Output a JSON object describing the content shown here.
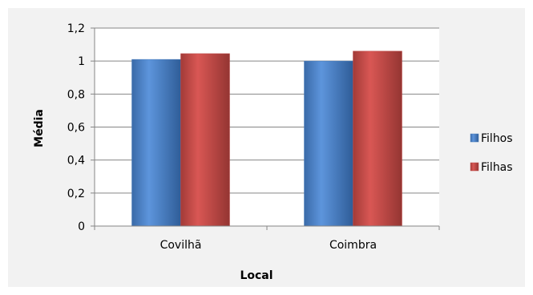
{
  "chart_data": {
    "type": "bar",
    "categories": [
      "Covilhã",
      "Coimbra"
    ],
    "series": [
      {
        "name": "Filhos",
        "values": [
          1.01,
          1.0
        ],
        "color": "#4a7ebb"
      },
      {
        "name": "Filhas",
        "values": [
          1.045,
          1.06
        ],
        "color": "#be4b48"
      }
    ],
    "title": "",
    "xlabel": "Local",
    "ylabel": "Média",
    "ylim": [
      0,
      1.2
    ],
    "yticks": [
      "0",
      "0,2",
      "0,4",
      "0,6",
      "0,8",
      "1",
      "1,2"
    ],
    "ytick_values": [
      0,
      0.2,
      0.4,
      0.6,
      0.8,
      1.0,
      1.2
    ],
    "grid": true,
    "legend_position": "right"
  }
}
